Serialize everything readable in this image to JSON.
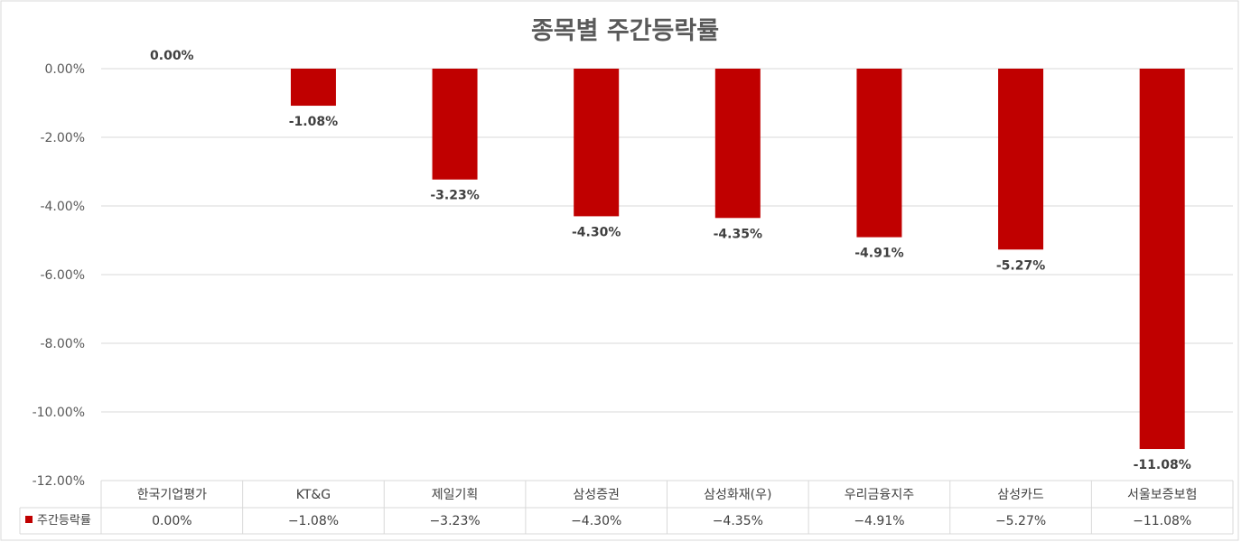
{
  "chart_data": {
    "type": "bar",
    "title": "종목별 주간등락률",
    "categories": [
      "한국기업평가",
      "KT&G",
      "제일기획",
      "삼성증권",
      "삼성화재(우)",
      "우리금융지주",
      "삼성카드",
      "서울보증보험"
    ],
    "series": [
      {
        "name": "주간등락률",
        "values": [
          0.0,
          -1.08,
          -3.23,
          -4.3,
          -4.35,
          -4.91,
          -5.27,
          -11.08
        ],
        "labels": [
          "0.00%",
          "-1.08%",
          "-3.23%",
          "-4.30%",
          "-4.35%",
          "-4.91%",
          "-5.27%",
          "-11.08%"
        ],
        "table_labels": [
          "0.00%",
          "−1.08%",
          "−3.23%",
          "−4.30%",
          "−4.35%",
          "−4.91%",
          "−5.27%",
          "−11.08%"
        ],
        "color": "#c00000"
      }
    ],
    "ylim": [
      -12,
      0
    ],
    "yticks": [
      0,
      -2,
      -4,
      -6,
      -8,
      -10,
      -12
    ],
    "ytick_labels": [
      "0.00%",
      "-2.00%",
      "-4.00%",
      "-6.00%",
      "-8.00%",
      "-10.00%",
      "-12.00%"
    ],
    "grid": true,
    "data_table": true,
    "legend": "data-table",
    "xlabel": "",
    "ylabel": ""
  }
}
